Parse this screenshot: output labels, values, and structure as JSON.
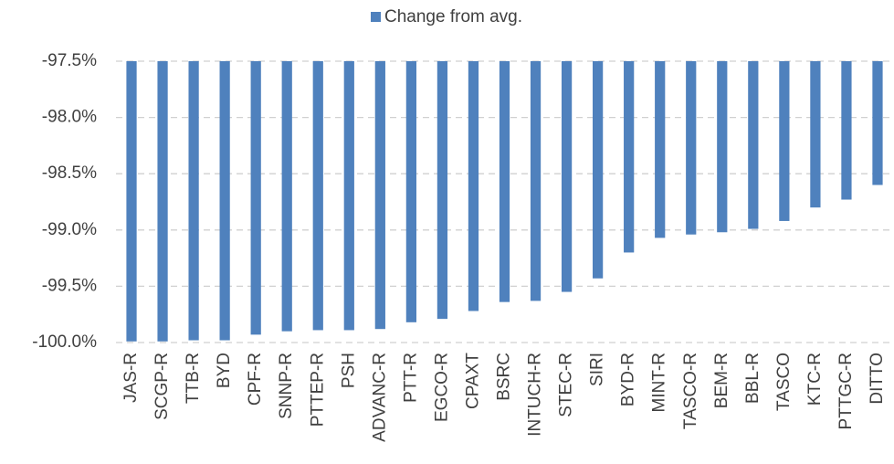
{
  "chart_data": {
    "type": "bar",
    "categories": [
      "JAS-R",
      "SCGP-R",
      "TTB-R",
      "BYD",
      "CPF-R",
      "SNNP-R",
      "PTTEP-R",
      "PSH",
      "ADVANC-R",
      "PTT-R",
      "EGCO-R",
      "CPAXT",
      "BSRC",
      "INTUCH-R",
      "STEC-R",
      "SIRI",
      "BYD-R",
      "MINT-R",
      "TASCO-R",
      "BEM-R",
      "BBL-R",
      "TASCO",
      "KTC-R",
      "PTTGC-R",
      "DITTO"
    ],
    "series": [
      {
        "name": "Change from avg.",
        "color": "#4f81bd",
        "values": [
          -99.99,
          -99.99,
          -99.98,
          -99.98,
          -99.93,
          -99.9,
          -99.89,
          -99.89,
          -99.88,
          -99.82,
          -99.79,
          -99.72,
          -99.64,
          -99.63,
          -99.55,
          -99.43,
          -99.2,
          -99.07,
          -99.04,
          -99.02,
          -98.99,
          -98.92,
          -98.8,
          -98.73,
          -98.6
        ]
      }
    ],
    "ylim": [
      -100,
      -97.5
    ],
    "yticks": [
      {
        "value": -100,
        "label": "-100.0%"
      },
      {
        "value": -99.5,
        "label": "-99.5%"
      },
      {
        "value": -99,
        "label": "-99.0%"
      },
      {
        "value": -98.5,
        "label": "-98.5%"
      },
      {
        "value": -98,
        "label": "-98.0%"
      },
      {
        "value": -97.5,
        "label": "-97.5%"
      }
    ],
    "grid": true,
    "legend": "top"
  }
}
